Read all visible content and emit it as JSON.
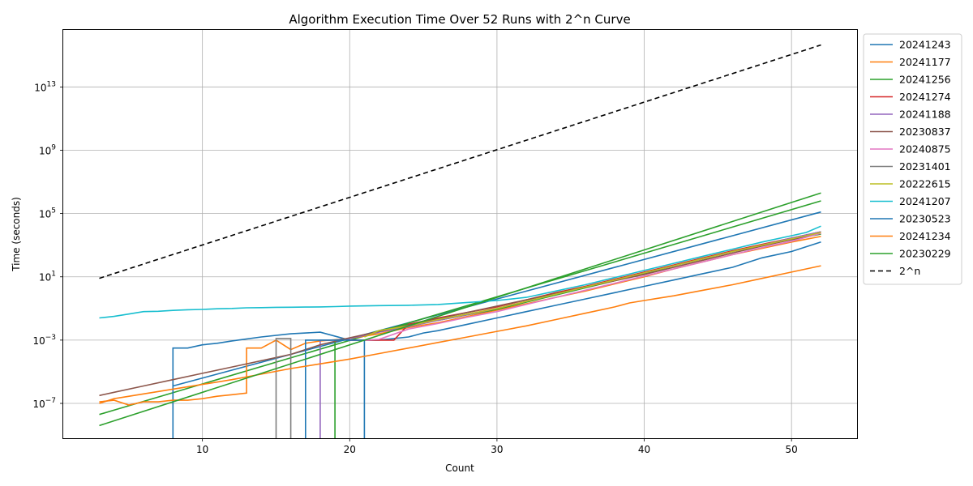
{
  "chart_data": {
    "type": "line",
    "title": "Algorithm Execution Time Over 52 Runs with 2^n Curve",
    "xlabel": "Count",
    "ylabel": "Time (seconds)",
    "xlim": [
      0.55,
      54.45
    ],
    "ylim_log10": [
      -9.2,
      16.6
    ],
    "yscale": "log",
    "grid": true,
    "legend_placement": "outside-top-right",
    "x_ticks": [
      10,
      20,
      30,
      40,
      50
    ],
    "y_ticks": [
      {
        "exp": -7,
        "label_base": "10",
        "label_exp": "−7"
      },
      {
        "exp": -3,
        "label_base": "10",
        "label_exp": "−3"
      },
      {
        "exp": 1,
        "label_base": "10",
        "label_exp": "1"
      },
      {
        "exp": 5,
        "label_base": "10",
        "label_exp": "5"
      },
      {
        "exp": 9,
        "label_base": "10",
        "label_exp": "9"
      },
      {
        "exp": 13,
        "label_base": "10",
        "label_exp": "13"
      }
    ],
    "series": [
      {
        "name": "20241243",
        "color": "#1f77b4",
        "dash": "",
        "points_log10": [
          [
            8,
            -10
          ],
          [
            8,
            -3.5
          ],
          [
            9,
            -3.5
          ],
          [
            10,
            -3.3
          ],
          [
            11,
            -3.2
          ],
          [
            12,
            -3.05
          ],
          [
            14,
            -2.8
          ],
          [
            16,
            -2.6
          ],
          [
            18,
            -2.5
          ],
          [
            20,
            -3
          ],
          [
            22,
            -3
          ],
          [
            23,
            -2.9
          ],
          [
            24,
            -2.8
          ],
          [
            25,
            -2.55
          ],
          [
            26,
            -2.4
          ],
          [
            28,
            -2.0
          ],
          [
            30,
            -1.6
          ],
          [
            32,
            -1.2
          ],
          [
            34,
            -0.8
          ],
          [
            36,
            -0.4
          ],
          [
            38,
            0
          ],
          [
            40,
            0.4
          ],
          [
            42,
            0.8
          ],
          [
            44,
            1.2
          ],
          [
            46,
            1.6
          ],
          [
            48,
            2.2
          ],
          [
            50,
            2.6
          ],
          [
            52,
            3.2
          ]
        ]
      },
      {
        "name": "20241177",
        "color": "#ff7f0e",
        "dash": "",
        "points_log10": [
          [
            3,
            -6.9
          ],
          [
            4,
            -6.8
          ],
          [
            5,
            -7.1
          ],
          [
            6,
            -6.9
          ],
          [
            7,
            -6.9
          ],
          [
            8,
            -6.8
          ],
          [
            9,
            -6.8
          ],
          [
            10,
            -6.7
          ],
          [
            11,
            -6.55
          ],
          [
            12,
            -6.45
          ],
          [
            13,
            -6.35
          ],
          [
            13,
            -3.5
          ],
          [
            14,
            -3.5
          ],
          [
            15,
            -3
          ],
          [
            16,
            -3.6
          ],
          [
            17,
            -3.2
          ],
          [
            18,
            -3.05
          ],
          [
            20,
            -2.9
          ],
          [
            22,
            -2.6
          ],
          [
            24,
            -2.2
          ],
          [
            26,
            -1.9
          ],
          [
            28,
            -1.5
          ],
          [
            30,
            -1.1
          ],
          [
            32,
            -0.7
          ],
          [
            34,
            -0.3
          ],
          [
            36,
            0.1
          ],
          [
            38,
            0.55
          ],
          [
            40,
            1.0
          ],
          [
            42,
            1.5
          ],
          [
            44,
            1.95
          ],
          [
            46,
            2.4
          ],
          [
            48,
            2.8
          ],
          [
            50,
            3.2
          ],
          [
            52,
            3.55
          ]
        ]
      },
      {
        "name": "20241256",
        "color": "#2ca02c",
        "dash": "",
        "points_log10": [
          [
            19,
            -10
          ],
          [
            19,
            -3
          ],
          [
            20,
            -2.9
          ],
          [
            21,
            -2.7
          ],
          [
            22,
            -2.4
          ],
          [
            23,
            -2.2
          ],
          [
            24,
            -2.0
          ],
          [
            26,
            -1.75
          ],
          [
            28,
            -1.4
          ],
          [
            30,
            -1.05
          ],
          [
            32,
            -0.6
          ],
          [
            34,
            -0.15
          ],
          [
            36,
            0.3
          ],
          [
            38,
            0.75
          ],
          [
            40,
            1.2
          ],
          [
            42,
            1.7
          ],
          [
            44,
            2.15
          ],
          [
            46,
            2.6
          ],
          [
            48,
            3.0
          ],
          [
            50,
            3.35
          ],
          [
            52,
            3.7
          ]
        ]
      },
      {
        "name": "20241274",
        "color": "#d62728",
        "dash": "",
        "points_log10": [
          [
            20,
            -3
          ],
          [
            21,
            -3
          ],
          [
            22,
            -3
          ],
          [
            23,
            -3
          ],
          [
            24,
            -2.0
          ],
          [
            26,
            -1.6
          ],
          [
            28,
            -1.25
          ],
          [
            30,
            -0.9
          ],
          [
            32,
            -0.45
          ],
          [
            34,
            0
          ],
          [
            36,
            0.4
          ],
          [
            38,
            0.85
          ],
          [
            40,
            1.3
          ],
          [
            42,
            1.75
          ],
          [
            44,
            2.2
          ],
          [
            46,
            2.65
          ],
          [
            48,
            3.05
          ],
          [
            50,
            3.45
          ],
          [
            52,
            3.85
          ]
        ]
      },
      {
        "name": "20241188",
        "color": "#9467bd",
        "dash": "",
        "points_log10": [
          [
            18,
            -10
          ],
          [
            18,
            -3
          ],
          [
            19,
            -3
          ],
          [
            20,
            -2.9
          ],
          [
            22,
            -2.5
          ],
          [
            24,
            -2.15
          ],
          [
            26,
            -1.75
          ],
          [
            28,
            -1.4
          ],
          [
            30,
            -1.0
          ],
          [
            32,
            -0.55
          ],
          [
            34,
            -0.1
          ],
          [
            36,
            0.35
          ],
          [
            38,
            0.8
          ],
          [
            40,
            1.25
          ],
          [
            42,
            1.7
          ],
          [
            44,
            2.15
          ],
          [
            46,
            2.6
          ],
          [
            48,
            3.0
          ],
          [
            50,
            3.45
          ],
          [
            52,
            3.85
          ]
        ]
      },
      {
        "name": "20230837",
        "color": "#8c564b",
        "dash": "",
        "points_log10": [
          [
            3,
            -6.5
          ],
          [
            4,
            -6.3
          ],
          [
            6,
            -5.9
          ],
          [
            8,
            -5.5
          ],
          [
            10,
            -5.1
          ],
          [
            12,
            -4.7
          ],
          [
            14,
            -4.3
          ],
          [
            16,
            -3.9
          ],
          [
            18,
            -3.3
          ],
          [
            20,
            -2.85
          ],
          [
            22,
            -2.45
          ],
          [
            24,
            -2.05
          ],
          [
            26,
            -1.65
          ],
          [
            28,
            -1.25
          ],
          [
            30,
            -0.85
          ],
          [
            32,
            -0.45
          ],
          [
            34,
            -0.05
          ],
          [
            36,
            0.35
          ],
          [
            38,
            0.75
          ],
          [
            40,
            1.15
          ],
          [
            42,
            1.6
          ],
          [
            44,
            2.05
          ],
          [
            46,
            2.5
          ],
          [
            48,
            2.95
          ],
          [
            50,
            3.35
          ],
          [
            52,
            3.75
          ]
        ]
      },
      {
        "name": "20240875",
        "color": "#e377c2",
        "dash": "",
        "points_log10": [
          [
            21,
            -3
          ],
          [
            22,
            -2.95
          ],
          [
            24,
            -2.3
          ],
          [
            26,
            -1.95
          ],
          [
            28,
            -1.55
          ],
          [
            30,
            -1.2
          ],
          [
            32,
            -0.75
          ],
          [
            34,
            -0.3
          ],
          [
            36,
            0.15
          ],
          [
            38,
            0.6
          ],
          [
            40,
            1.05
          ],
          [
            42,
            1.5
          ],
          [
            44,
            1.95
          ],
          [
            46,
            2.4
          ],
          [
            48,
            2.85
          ],
          [
            50,
            3.25
          ],
          [
            52,
            3.75
          ]
        ]
      },
      {
        "name": "20231401",
        "color": "#7f7f7f",
        "dash": "",
        "points_log10": [
          [
            15,
            -10
          ],
          [
            15,
            -2.9
          ],
          [
            16,
            -2.9
          ],
          [
            16,
            -10
          ]
        ]
      },
      {
        "name": "20222615",
        "color": "#bcbd22",
        "dash": "",
        "points_log10": [
          [
            21,
            -2.8
          ],
          [
            22,
            -2.4
          ],
          [
            24,
            -2.1
          ],
          [
            26,
            -1.7
          ],
          [
            28,
            -1.35
          ],
          [
            30,
            -1.0
          ],
          [
            32,
            -0.55
          ],
          [
            34,
            -0.1
          ],
          [
            36,
            0.35
          ],
          [
            38,
            0.8
          ],
          [
            40,
            1.25
          ],
          [
            42,
            1.7
          ],
          [
            44,
            2.15
          ],
          [
            46,
            2.6
          ],
          [
            48,
            3.0
          ],
          [
            50,
            3.4
          ],
          [
            52,
            3.8
          ]
        ]
      },
      {
        "name": "20241207",
        "color": "#17becf",
        "dash": "",
        "points_log10": [
          [
            3,
            -1.6
          ],
          [
            4,
            -1.5
          ],
          [
            5,
            -1.35
          ],
          [
            6,
            -1.2
          ],
          [
            7,
            -1.18
          ],
          [
            8,
            -1.12
          ],
          [
            9,
            -1.08
          ],
          [
            10,
            -1.06
          ],
          [
            11,
            -1.02
          ],
          [
            12,
            -1.0
          ],
          [
            13,
            -0.96
          ],
          [
            14,
            -0.95
          ],
          [
            15,
            -0.93
          ],
          [
            16,
            -0.92
          ],
          [
            17,
            -0.91
          ],
          [
            18,
            -0.9
          ],
          [
            19,
            -0.88
          ],
          [
            20,
            -0.85
          ],
          [
            22,
            -0.82
          ],
          [
            24,
            -0.8
          ],
          [
            26,
            -0.75
          ],
          [
            28,
            -0.62
          ],
          [
            30,
            -0.5
          ],
          [
            32,
            -0.3
          ],
          [
            34,
            0.1
          ],
          [
            36,
            0.5
          ],
          [
            38,
            0.95
          ],
          [
            40,
            1.4
          ],
          [
            42,
            1.85
          ],
          [
            44,
            2.3
          ],
          [
            46,
            2.75
          ],
          [
            48,
            3.2
          ],
          [
            50,
            3.6
          ],
          [
            51,
            3.8
          ],
          [
            52,
            4.2
          ]
        ]
      },
      {
        "name": "20230523",
        "color": "#1f77b4",
        "dash": "",
        "points_log10": [
          [
            17,
            -10
          ],
          [
            17,
            -3
          ],
          [
            18,
            -3
          ],
          [
            19,
            -3
          ],
          [
            21,
            -3
          ],
          [
            21,
            -10
          ]
        ]
      },
      {
        "name": "20241234",
        "color": "#ff7f0e",
        "dash": "",
        "points_log10": [
          [
            3,
            -7
          ],
          [
            4,
            -6.7
          ],
          [
            6,
            -6.4
          ],
          [
            8,
            -6.1
          ],
          [
            10,
            -5.8
          ],
          [
            12,
            -5.5
          ],
          [
            14,
            -5.15
          ],
          [
            16,
            -4.8
          ],
          [
            18,
            -4.5
          ],
          [
            20,
            -4.2
          ],
          [
            22,
            -3.85
          ],
          [
            24,
            -3.5
          ],
          [
            26,
            -3.15
          ],
          [
            28,
            -2.8
          ],
          [
            30,
            -2.45
          ],
          [
            32,
            -2.1
          ],
          [
            34,
            -1.7
          ],
          [
            36,
            -1.3
          ],
          [
            38,
            -0.9
          ],
          [
            39,
            -0.65
          ],
          [
            40,
            -0.5
          ],
          [
            41,
            -0.35
          ],
          [
            42,
            -0.2
          ],
          [
            44,
            0.15
          ],
          [
            46,
            0.5
          ],
          [
            48,
            0.9
          ],
          [
            50,
            1.3
          ],
          [
            52,
            1.7
          ]
        ]
      },
      {
        "name": "20230229",
        "color": "#2ca02c",
        "dash": "",
        "points_log10": [
          [
            3,
            -8.4
          ],
          [
            52,
            6.3
          ]
        ]
      },
      {
        "name": "2^n",
        "color": "#000000",
        "dash": "6,4",
        "points_log10": [
          [
            3,
            0.9031
          ],
          [
            52,
            15.6536
          ]
        ]
      }
    ],
    "extra_lines": [
      {
        "label": "",
        "color": "#1f77b4",
        "points_log10": [
          [
            3,
            -10
          ],
          [
            3,
            -10
          ]
        ]
      },
      {
        "label": "",
        "color": "#ff7f0e",
        "points_log10": [
          [
            3,
            -10
          ],
          [
            3,
            -10
          ]
        ]
      }
    ],
    "trend_lines": [
      {
        "color": "#1f77b4",
        "points_log10": [
          [
            8,
            -5.9
          ],
          [
            52,
            5.1
          ]
        ]
      },
      {
        "color": "#2ca02c",
        "points_log10": [
          [
            3,
            -7.7
          ],
          [
            52,
            5.8
          ]
        ]
      }
    ]
  }
}
